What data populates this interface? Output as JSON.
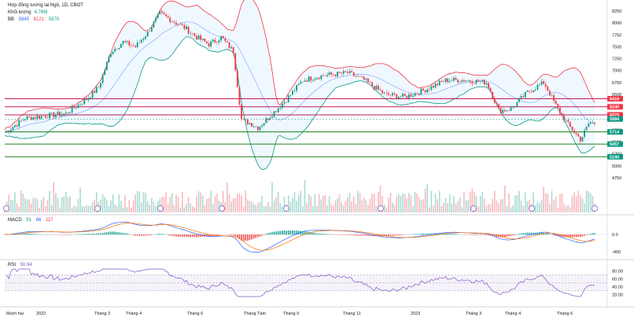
{
  "header": {
    "title": "Hợp đồng tương lai Ngô, 1D, CBOT",
    "volume_label": "Khối lượng",
    "volume_value": "4.76M",
    "bb_label": "BB",
    "bb_values": [
      "5845",
      "6121",
      "5570"
    ],
    "bb_colors": [
      "#2962ff",
      "#f23645",
      "#089981"
    ]
  },
  "macd_legend": {
    "label": "MACD",
    "values": [
      "51",
      "66",
      "117"
    ],
    "colors": [
      "#089981",
      "#2962ff",
      "#f23645"
    ]
  },
  "rsi_legend": {
    "label": "RSI",
    "value": "50.94"
  },
  "price_axis": [
    "8250",
    "8000",
    "7750",
    "7500",
    "7250",
    "7000",
    "6750",
    "6500",
    "6250",
    "6000",
    "5750",
    "5500",
    "5250",
    "5000",
    "4750"
  ],
  "level_pills": [
    {
      "text": "6410",
      "color": "#f23645"
    },
    {
      "text": "6240",
      "color": "#f23645"
    },
    {
      "text": "6070",
      "color": "#f23645"
    },
    {
      "text": "5984",
      "color": "#089981"
    },
    {
      "text": "5714",
      "color": "#089981"
    },
    {
      "text": "5457",
      "color": "#089981"
    },
    {
      "text": "5190",
      "color": "#089981"
    }
  ],
  "macd_axis": [
    "0.0",
    "-400"
  ],
  "rsi_axis": [
    "80.00",
    "60.00",
    "40.00",
    "20.00"
  ],
  "time_axis": [
    "Mười hai",
    "2022",
    "Tháng 3",
    "Tháng 4",
    "Tháng 6",
    "Tháng Tám",
    "Tháng 9",
    "Tháng 11",
    "2023",
    "Tháng 3",
    "Tháng 4",
    "Tháng 6"
  ],
  "colors": {
    "up": "#089981",
    "down": "#f23645",
    "bb_upper": "#f23645",
    "bb_lower": "#089981",
    "bb_mid": "#2962ff",
    "level_red": "#c2185b",
    "level_green": "#1b7f1b",
    "rsi": "#7e57c2"
  },
  "chart_data": {
    "type": "candlestick",
    "anchors": [
      [
        0,
        5700
      ],
      [
        25,
        6000
      ],
      [
        50,
        6050
      ],
      [
        75,
        6100
      ],
      [
        100,
        6400
      ],
      [
        115,
        6650
      ],
      [
        130,
        7400
      ],
      [
        145,
        7600
      ],
      [
        160,
        7500
      ],
      [
        175,
        7800
      ],
      [
        190,
        8200
      ],
      [
        205,
        8050
      ],
      [
        220,
        7900
      ],
      [
        235,
        7700
      ],
      [
        250,
        7550
      ],
      [
        265,
        7700
      ],
      [
        280,
        7400
      ],
      [
        290,
        5950
      ],
      [
        300,
        5900
      ],
      [
        310,
        5800
      ],
      [
        325,
        6050
      ],
      [
        345,
        6400
      ],
      [
        365,
        6800
      ],
      [
        390,
        6900
      ],
      [
        420,
        6950
      ],
      [
        440,
        6800
      ],
      [
        465,
        6500
      ],
      [
        490,
        6450
      ],
      [
        515,
        6600
      ],
      [
        540,
        6800
      ],
      [
        565,
        6800
      ],
      [
        590,
        6750
      ],
      [
        605,
        6150
      ],
      [
        620,
        6200
      ],
      [
        640,
        6550
      ],
      [
        660,
        6750
      ],
      [
        675,
        6250
      ],
      [
        690,
        5850
      ],
      [
        705,
        5550
      ],
      [
        715,
        5900
      ],
      [
        722,
        5900
      ]
    ],
    "price_range": [
      4650,
      8350
    ],
    "levels": [
      6410,
      6240,
      6070,
      5714,
      5457,
      5190
    ],
    "rsi_range": [
      15,
      85
    ],
    "rsi_band": [
      30,
      70
    ]
  }
}
